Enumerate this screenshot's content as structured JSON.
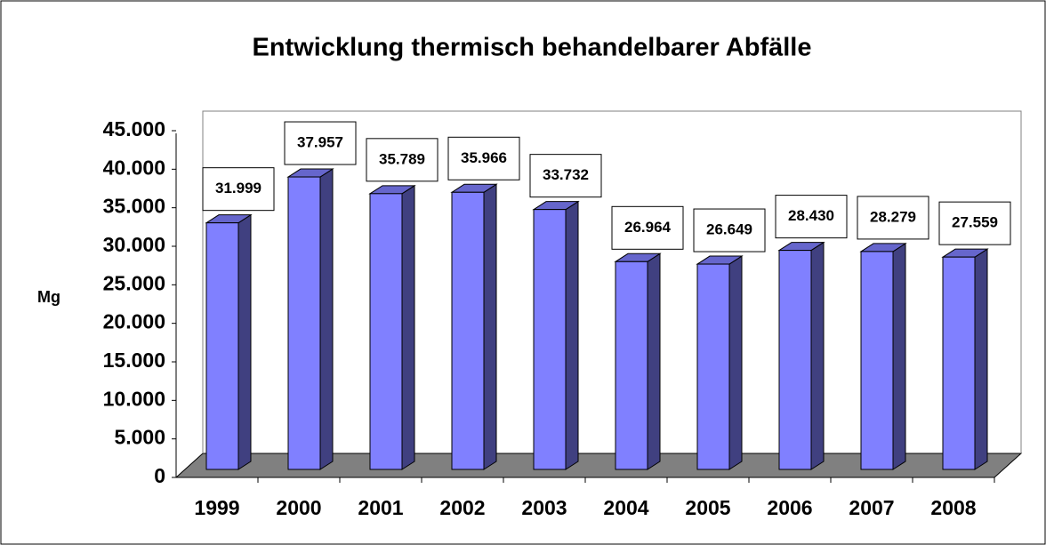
{
  "chart_data": {
    "type": "bar3d",
    "title": "Entwicklung thermisch behandelbarer Abfälle",
    "y_label": "Mg",
    "categories": [
      "1999",
      "2000",
      "2001",
      "2002",
      "2003",
      "2004",
      "2005",
      "2006",
      "2007",
      "2008"
    ],
    "values": [
      31999,
      37957,
      35789,
      35966,
      33732,
      26964,
      26649,
      28430,
      28279,
      27559
    ],
    "value_labels": [
      "31.999",
      "37.957",
      "35.789",
      "35.966",
      "33.732",
      "26.964",
      "26.649",
      "28.430",
      "28.279",
      "27.559"
    ],
    "color": "#8080ff",
    "ylim": [
      0,
      45000
    ],
    "yticks": [
      0,
      {
        "value": 5000,
        "label": "5.000"
      },
      {
        "value": 10000,
        "label": "10.000"
      },
      {
        "value": 15000,
        "label": "15.000"
      },
      {
        "value": 20000,
        "label": "20.000"
      },
      {
        "value": 25000,
        "label": "25.000"
      },
      {
        "value": 30000,
        "label": "30.000"
      },
      {
        "value": 35000,
        "label": "35.000"
      },
      {
        "value": 40000,
        "label": "40.000"
      },
      {
        "value": 45000,
        "label": "45.000"
      }
    ]
  }
}
